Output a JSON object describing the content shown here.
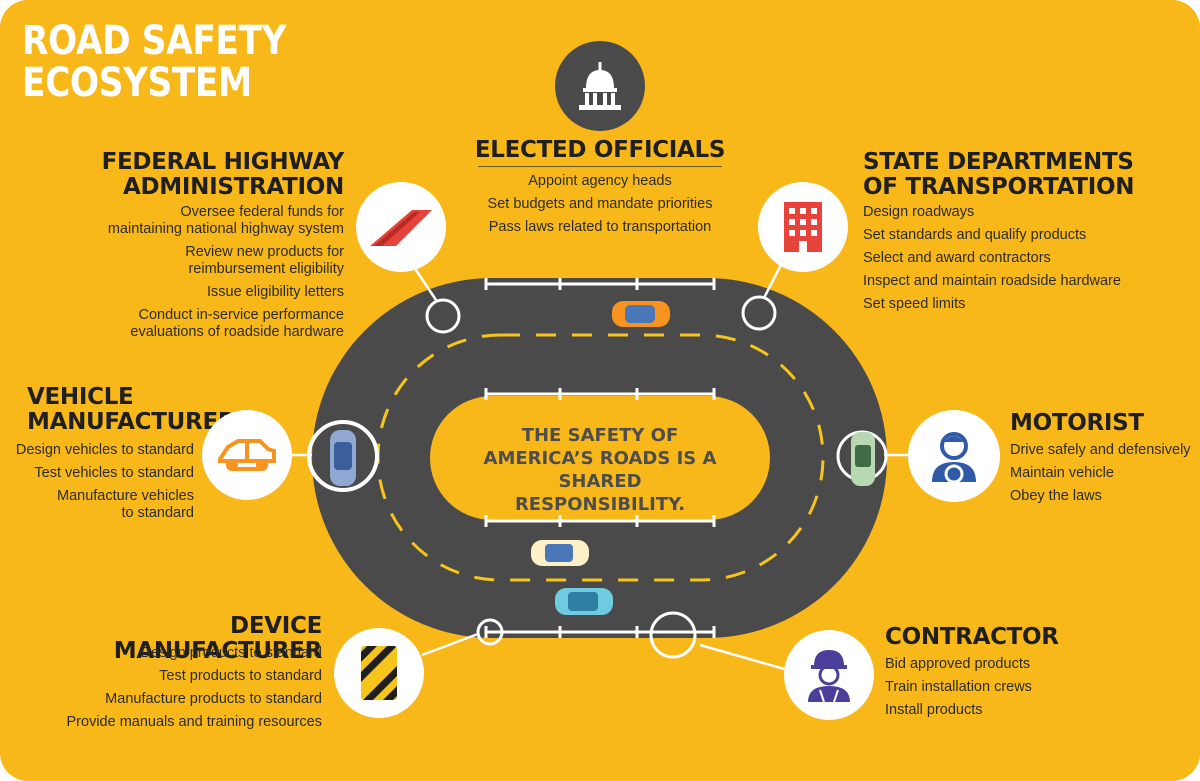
{
  "title": [
    "ROAD SAFETY",
    "ECOSYSTEM"
  ],
  "center_message": [
    "THE SAFETY OF",
    "AMERICA’S ROADS IS A SHARED",
    "RESPONSIBILITY."
  ],
  "colors": {
    "background": "#f9b81a",
    "road": "#4a4a4a",
    "lane_marking": "#f7c41c",
    "accent_orange": "#f7931e",
    "accent_red": "#e8433a",
    "accent_blue": "#2e5aa7",
    "text_dark": "#1f1f1f"
  },
  "stakeholders": {
    "elected_officials": {
      "heading": [
        "ELECTED OFFICIALS"
      ],
      "icon": "capitol-icon",
      "items": [
        "Appoint agency heads",
        "Set budgets and mandate priorities",
        "Pass laws related to transportation"
      ]
    },
    "fhwa": {
      "heading": [
        "FEDERAL HIGHWAY",
        "ADMINISTRATION"
      ],
      "icon": "highway-icon",
      "items": [
        [
          "Oversee federal funds for",
          "maintaining national highway system"
        ],
        [
          "Review new products for",
          "reimbursement eligibility"
        ],
        [
          "Issue eligibility letters"
        ],
        [
          "Conduct in-service performance",
          "evaluations of roadside hardware"
        ]
      ]
    },
    "state_dot": {
      "heading": [
        "STATE DEPARTMENTS",
        "OF TRANSPORTATION"
      ],
      "icon": "office-building-icon",
      "items": [
        "Design roadways",
        "Set standards and qualify products",
        "Select and award contractors",
        "Inspect and maintain roadside hardware",
        "Set speed limits"
      ]
    },
    "vehicle_manufacturer": {
      "heading": [
        "VEHICLE",
        "MANUFACTURER"
      ],
      "icon": "car-frame-icon",
      "items": [
        [
          "Design vehicles to standard"
        ],
        [
          "Test vehicles to standard"
        ],
        [
          "Manufacture vehicles",
          "to standard"
        ]
      ]
    },
    "motorist": {
      "heading": [
        "MOTORIST"
      ],
      "icon": "driver-icon",
      "items": [
        "Drive safely and defensively",
        "Maintain vehicle",
        "Obey the laws"
      ]
    },
    "device_manufacturer": {
      "heading": [
        "DEVICE MANUFACTURER"
      ],
      "icon": "hazard-marker-icon",
      "items": [
        "Design products to standard",
        "Test products to standard",
        "Manufacture products to standard",
        "Provide manuals and training resources"
      ]
    },
    "contractor": {
      "heading": [
        "CONTRACTOR"
      ],
      "icon": "construction-worker-icon",
      "items": [
        "Bid approved products",
        "Train installation crews",
        "Install products"
      ]
    }
  }
}
